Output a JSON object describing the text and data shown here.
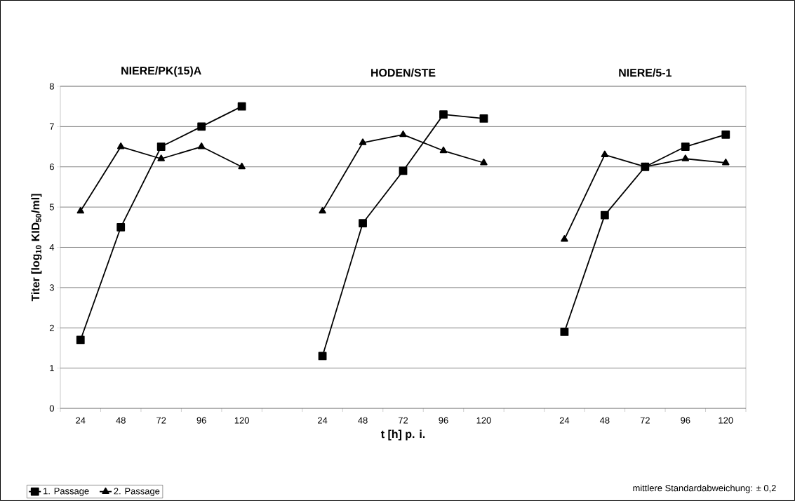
{
  "chart_data": {
    "type": "line",
    "xlabel": "t [h] p. i.",
    "ylabel": "Titer [log$_{10}$ KID$_{50}$/ml]",
    "categories": [
      "24",
      "48",
      "72",
      "96",
      "120",
      null,
      "24",
      "48",
      "72",
      "96",
      "120",
      null,
      "24",
      "48",
      "72",
      "96",
      "120"
    ],
    "series": [
      {
        "name": "1. Passage",
        "color": "#000000",
        "marker": "square",
        "values": [
          1.7,
          4.5,
          6.5,
          7.0,
          7.5,
          null,
          1.3,
          4.6,
          5.9,
          7.3,
          7.2,
          null,
          1.9,
          4.8,
          6.0,
          6.5,
          6.8
        ]
      },
      {
        "name": "2. Passage",
        "color": "#000000",
        "marker": "triangle",
        "values": [
          4.9,
          6.5,
          6.2,
          6.5,
          6.0,
          null,
          4.9,
          6.6,
          6.8,
          6.4,
          6.1,
          null,
          4.2,
          6.3,
          6.0,
          6.2,
          6.1
        ]
      }
    ],
    "annotations": [
      "NIERE/PK(15)A",
      "HODEN/STE",
      "NIERE/5-1",
      "mittlere Standardabweichung: ± 0,2"
    ],
    "ylim": [
      0,
      8
    ],
    "yticks": [
      0,
      1,
      2,
      3,
      4,
      5,
      6,
      7,
      8
    ],
    "grid": "y",
    "legend": "bottom left",
    "line_style": "solid"
  }
}
